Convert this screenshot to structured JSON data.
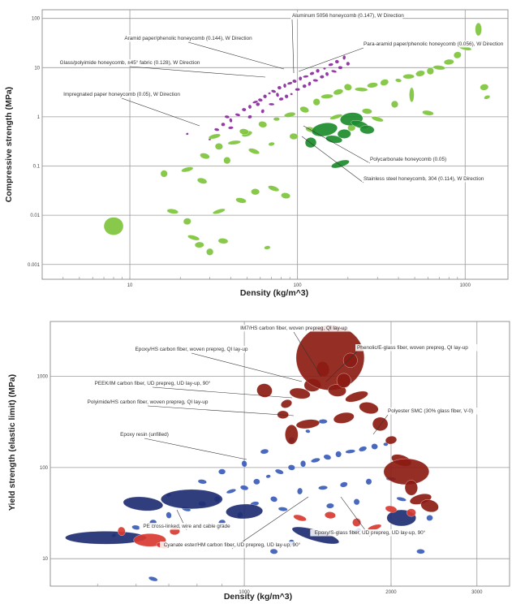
{
  "chart_data": [
    {
      "type": "scatter",
      "title": "",
      "xlabel": "Density (kg/m^3)",
      "ylabel": "Compressive strength (MPa)",
      "xscale": "log",
      "yscale": "log",
      "xlim": [
        3,
        1800
      ],
      "ylim": [
        0.0005,
        150
      ],
      "grid": true,
      "xticks": [
        {
          "value": 10,
          "label": "10"
        },
        {
          "value": 100,
          "label": "100"
        },
        {
          "value": 1000,
          "label": "1000"
        }
      ],
      "yticks": [
        {
          "value": 0.001,
          "label": "0.001"
        },
        {
          "value": 0.01,
          "label": "0.01"
        },
        {
          "value": 0.1,
          "label": "0.1"
        },
        {
          "value": 1,
          "label": "1"
        },
        {
          "value": 10,
          "label": "10"
        },
        {
          "value": 100,
          "label": "100"
        }
      ],
      "colors": {
        "purple": "#8a2a9c",
        "light_green": "#7ec43c",
        "dark_green": "#1c8c2c"
      },
      "series": [
        {
          "color": "purple",
          "points": [
            {
              "x": 30,
              "y": 0.35
            },
            {
              "x": 33,
              "y": 0.55
            },
            {
              "x": 36,
              "y": 0.7
            },
            {
              "x": 40,
              "y": 0.85
            },
            {
              "x": 44,
              "y": 1.1
            },
            {
              "x": 48,
              "y": 1.4
            },
            {
              "x": 52,
              "y": 1.6
            },
            {
              "x": 56,
              "y": 2.0
            },
            {
              "x": 60,
              "y": 2.2
            },
            {
              "x": 64,
              "y": 2.6
            },
            {
              "x": 68,
              "y": 3.0
            },
            {
              "x": 72,
              "y": 3.3
            },
            {
              "x": 78,
              "y": 3.9
            },
            {
              "x": 84,
              "y": 4.3
            },
            {
              "x": 90,
              "y": 4.8
            },
            {
              "x": 96,
              "y": 5.3
            },
            {
              "x": 104,
              "y": 6.0
            },
            {
              "x": 112,
              "y": 6.6
            },
            {
              "x": 122,
              "y": 7.6
            },
            {
              "x": 132,
              "y": 8.6
            },
            {
              "x": 145,
              "y": 9.6
            },
            {
              "x": 158,
              "y": 11.5
            },
            {
              "x": 172,
              "y": 13.2
            },
            {
              "x": 190,
              "y": 16
            },
            {
              "x": 40,
              "y": 0.6
            },
            {
              "x": 52,
              "y": 1.0
            },
            {
              "x": 62,
              "y": 1.3
            },
            {
              "x": 70,
              "y": 1.8
            },
            {
              "x": 80,
              "y": 2.3
            },
            {
              "x": 86,
              "y": 2.6
            },
            {
              "x": 92,
              "y": 2.9
            },
            {
              "x": 100,
              "y": 3.6
            },
            {
              "x": 110,
              "y": 4.2
            },
            {
              "x": 118,
              "y": 4.7
            },
            {
              "x": 128,
              "y": 5.5
            },
            {
              "x": 140,
              "y": 6.5
            },
            {
              "x": 150,
              "y": 7.4
            },
            {
              "x": 165,
              "y": 8.4
            },
            {
              "x": 180,
              "y": 10
            },
            {
              "x": 200,
              "y": 12
            },
            {
              "x": 22,
              "y": 0.45
            },
            {
              "x": 38,
              "y": 1.0
            },
            {
              "x": 58,
              "y": 1.8
            },
            {
              "x": 76,
              "y": 2.8
            }
          ]
        },
        {
          "color": "light_green",
          "points": [
            {
              "x": 8,
              "y": 0.006
            },
            {
              "x": 18,
              "y": 0.012
            },
            {
              "x": 26,
              "y": 0.0025
            },
            {
              "x": 30,
              "y": 0.0018
            },
            {
              "x": 24,
              "y": 0.0035
            },
            {
              "x": 36,
              "y": 0.003
            },
            {
              "x": 22,
              "y": 0.0075
            },
            {
              "x": 34,
              "y": 0.012
            },
            {
              "x": 46,
              "y": 0.02
            },
            {
              "x": 56,
              "y": 0.03
            },
            {
              "x": 66,
              "y": 0.0022
            },
            {
              "x": 72,
              "y": 0.035
            },
            {
              "x": 85,
              "y": 0.025
            },
            {
              "x": 16,
              "y": 0.07
            },
            {
              "x": 22,
              "y": 0.085
            },
            {
              "x": 28,
              "y": 0.16
            },
            {
              "x": 34,
              "y": 0.25
            },
            {
              "x": 42,
              "y": 0.3
            },
            {
              "x": 50,
              "y": 0.45
            },
            {
              "x": 62,
              "y": 0.7
            },
            {
              "x": 75,
              "y": 0.9
            },
            {
              "x": 90,
              "y": 1.1
            },
            {
              "x": 110,
              "y": 1.4
            },
            {
              "x": 130,
              "y": 2.0
            },
            {
              "x": 150,
              "y": 2.6
            },
            {
              "x": 175,
              "y": 3.2
            },
            {
              "x": 200,
              "y": 4.0
            },
            {
              "x": 240,
              "y": 3.6
            },
            {
              "x": 280,
              "y": 4.4
            },
            {
              "x": 330,
              "y": 5.0
            },
            {
              "x": 400,
              "y": 5.5
            },
            {
              "x": 460,
              "y": 6.6
            },
            {
              "x": 540,
              "y": 7.6
            },
            {
              "x": 620,
              "y": 8.5
            },
            {
              "x": 700,
              "y": 10
            },
            {
              "x": 800,
              "y": 13
            },
            {
              "x": 900,
              "y": 18
            },
            {
              "x": 1000,
              "y": 25
            },
            {
              "x": 1200,
              "y": 60
            },
            {
              "x": 1300,
              "y": 4.0
            },
            {
              "x": 1350,
              "y": 2.5
            },
            {
              "x": 600,
              "y": 1.2
            },
            {
              "x": 480,
              "y": 2.8
            },
            {
              "x": 380,
              "y": 1.8
            },
            {
              "x": 300,
              "y": 0.9
            },
            {
              "x": 260,
              "y": 1.3
            },
            {
              "x": 210,
              "y": 0.6
            },
            {
              "x": 170,
              "y": 1.0
            },
            {
              "x": 120,
              "y": 0.55
            },
            {
              "x": 95,
              "y": 0.4
            },
            {
              "x": 70,
              "y": 0.28
            },
            {
              "x": 55,
              "y": 0.2
            },
            {
              "x": 48,
              "y": 0.5
            },
            {
              "x": 38,
              "y": 0.13
            },
            {
              "x": 32,
              "y": 0.4
            },
            {
              "x": 27,
              "y": 0.05
            }
          ]
        },
        {
          "color": "dark_green",
          "points": [
            {
              "x": 145,
              "y": 0.55
            },
            {
              "x": 165,
              "y": 0.35
            },
            {
              "x": 190,
              "y": 0.45
            },
            {
              "x": 210,
              "y": 0.9
            },
            {
              "x": 235,
              "y": 0.7
            },
            {
              "x": 260,
              "y": 0.55
            },
            {
              "x": 120,
              "y": 0.3
            },
            {
              "x": 180,
              "y": 0.11
            }
          ]
        }
      ],
      "annotations": [
        "Aluminum 5056 honeycomb (0.147), W Direction",
        "Aramid paper/phenolic honeycomb (0.144), W Direction",
        "Para-aramid paper/phenolic honeycomb (0.056), W Direction",
        "Glass/polyimide honeycomb, ±45° fabric (0.128), W Direction",
        "Impregnated paper honeycomb (0.05), W Direction",
        "Polycarbonate honeycomb (0.05)",
        "Stainless steel honeycomb, 304 (0.114), W Direction"
      ]
    },
    {
      "type": "scatter",
      "title": "",
      "xlabel": "Density (kg/m^3)",
      "ylabel": "Yield strength (elastic limit) (MPa)",
      "xscale": "log",
      "yscale": "log",
      "xlim": [
        400,
        3500
      ],
      "ylim": [
        5,
        4000
      ],
      "grid": true,
      "xticks": [
        {
          "value": 1000,
          "label": "1000"
        },
        {
          "value": 2000,
          "label": "2000"
        },
        {
          "value": 3000,
          "label": "3000"
        }
      ],
      "yticks": [
        {
          "value": 10,
          "label": "10"
        },
        {
          "value": 100,
          "label": "100"
        },
        {
          "value": 1000,
          "label": "1000"
        }
      ],
      "colors": {
        "blue": "#3a5cb8",
        "dark_navy": "#1f2e72",
        "red": "#d83a30",
        "dark_red": "#8c1c12"
      },
      "series": [
        {
          "color": "blue",
          "points": [
            {
              "x": 540,
              "y": 18
            },
            {
              "x": 600,
              "y": 22
            },
            {
              "x": 650,
              "y": 25
            },
            {
              "x": 700,
              "y": 30
            },
            {
              "x": 760,
              "y": 35
            },
            {
              "x": 820,
              "y": 40
            },
            {
              "x": 880,
              "y": 45
            },
            {
              "x": 940,
              "y": 55
            },
            {
              "x": 1000,
              "y": 60
            },
            {
              "x": 1060,
              "y": 70
            },
            {
              "x": 1120,
              "y": 80
            },
            {
              "x": 1180,
              "y": 90
            },
            {
              "x": 1250,
              "y": 100
            },
            {
              "x": 1320,
              "y": 110
            },
            {
              "x": 1400,
              "y": 120
            },
            {
              "x": 1480,
              "y": 130
            },
            {
              "x": 1560,
              "y": 140
            },
            {
              "x": 1650,
              "y": 150
            },
            {
              "x": 1750,
              "y": 160
            },
            {
              "x": 1850,
              "y": 170
            },
            {
              "x": 1950,
              "y": 180
            },
            {
              "x": 1050,
              "y": 40
            },
            {
              "x": 1150,
              "y": 45
            },
            {
              "x": 1300,
              "y": 55
            },
            {
              "x": 1450,
              "y": 60
            },
            {
              "x": 1600,
              "y": 65
            },
            {
              "x": 1800,
              "y": 70
            },
            {
              "x": 2000,
              "y": 75
            },
            {
              "x": 1100,
              "y": 150
            },
            {
              "x": 1250,
              "y": 200
            },
            {
              "x": 1350,
              "y": 250
            },
            {
              "x": 1450,
              "y": 320
            },
            {
              "x": 900,
              "y": 25
            },
            {
              "x": 980,
              "y": 30
            },
            {
              "x": 1200,
              "y": 35
            },
            {
              "x": 1500,
              "y": 38
            },
            {
              "x": 1700,
              "y": 42
            },
            {
              "x": 2100,
              "y": 45
            },
            {
              "x": 2300,
              "y": 12
            },
            {
              "x": 2400,
              "y": 28
            },
            {
              "x": 700,
              "y": 50
            },
            {
              "x": 820,
              "y": 70
            },
            {
              "x": 900,
              "y": 90
            },
            {
              "x": 1000,
              "y": 110
            },
            {
              "x": 650,
              "y": 6
            },
            {
              "x": 1150,
              "y": 12
            },
            {
              "x": 1250,
              "y": 15
            },
            {
              "x": 1700,
              "y": 20
            }
          ]
        },
        {
          "color": "dark_navy",
          "points": [
            {
              "x": 520,
              "y": 17
            },
            {
              "x": 780,
              "y": 45
            },
            {
              "x": 1000,
              "y": 33
            },
            {
              "x": 2100,
              "y": 28
            },
            {
              "x": 1400,
              "y": 18
            },
            {
              "x": 620,
              "y": 40
            }
          ]
        },
        {
          "color": "red",
          "points": [
            {
              "x": 640,
              "y": 16
            },
            {
              "x": 680,
              "y": 14
            },
            {
              "x": 720,
              "y": 20
            },
            {
              "x": 560,
              "y": 20
            },
            {
              "x": 1300,
              "y": 28
            },
            {
              "x": 1500,
              "y": 30
            },
            {
              "x": 1700,
              "y": 25
            },
            {
              "x": 1850,
              "y": 22
            },
            {
              "x": 2000,
              "y": 35
            },
            {
              "x": 2200,
              "y": 32
            }
          ]
        },
        {
          "color": "dark_red",
          "points": [
            {
              "x": 1220,
              "y": 500
            },
            {
              "x": 1300,
              "y": 650
            },
            {
              "x": 1380,
              "y": 800
            },
            {
              "x": 1450,
              "y": 1200
            },
            {
              "x": 1500,
              "y": 1600
            },
            {
              "x": 1550,
              "y": 700
            },
            {
              "x": 1600,
              "y": 900
            },
            {
              "x": 1700,
              "y": 600
            },
            {
              "x": 1800,
              "y": 450
            },
            {
              "x": 1900,
              "y": 300
            },
            {
              "x": 2000,
              "y": 200
            },
            {
              "x": 2100,
              "y": 120
            },
            {
              "x": 2150,
              "y": 90
            },
            {
              "x": 2200,
              "y": 60
            },
            {
              "x": 2300,
              "y": 45
            },
            {
              "x": 2400,
              "y": 38
            },
            {
              "x": 1650,
              "y": 1500
            },
            {
              "x": 1350,
              "y": 300
            },
            {
              "x": 1250,
              "y": 230
            },
            {
              "x": 1100,
              "y": 700
            },
            {
              "x": 1200,
              "y": 380
            },
            {
              "x": 1600,
              "y": 350
            }
          ]
        }
      ],
      "annotations": [
        "IM7/HS carbon fiber, woven prepreg, QI lay-up",
        "Epoxy/HS carbon fiber, woven prepreg, QI lay-up",
        "Phenolic/E-glass fiber, woven prepreg, QI lay-up",
        "PEEK/IM carbon fiber, UD prepreg, UD lay-up, 90°",
        "Polyimide/HS carbon fiber, woven prepreg, QI lay-up",
        "Polyester SMC (30% glass fiber, V-0)",
        "Epoxy resin (unfilled)",
        "PE cross-linked, wire and cable grade",
        "Epoxy/S-glass fiber, UD prepreg, UD lay-up, 90°",
        "Cyanate ester/HM carbon fiber, UD prepreg, UD lay-up, 90°"
      ]
    }
  ]
}
